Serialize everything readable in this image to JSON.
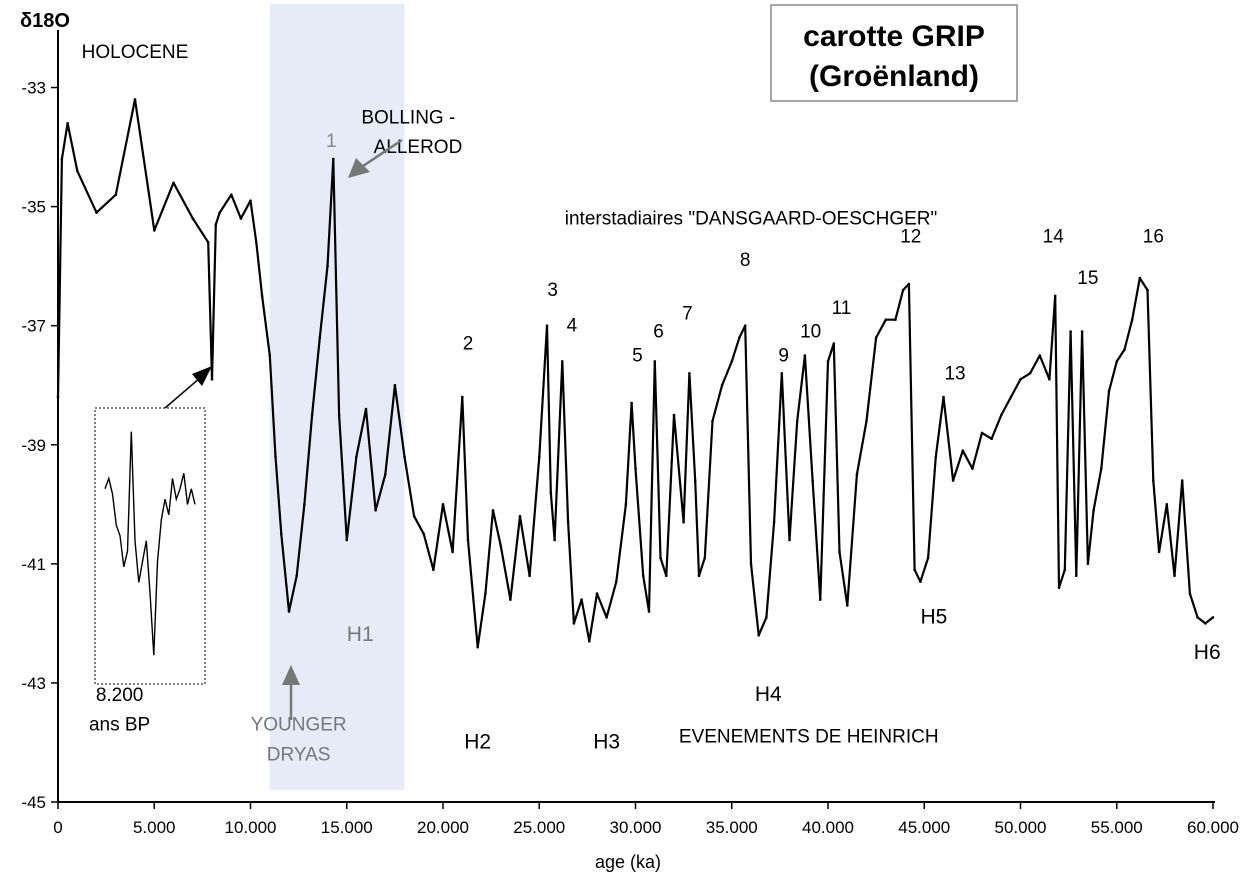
{
  "chart_data": {
    "type": "line",
    "title": "carotte GRIP",
    "subtitle": "(Groënland)",
    "ylabel": "δ18O",
    "xlabel": "age (ka)",
    "xlim": [
      0,
      60000
    ],
    "ylim": [
      -45,
      -32
    ],
    "x_ticks": [
      0,
      5000,
      10000,
      15000,
      20000,
      25000,
      30000,
      35000,
      40000,
      45000,
      50000,
      55000,
      60000
    ],
    "x_tick_labels": [
      "0",
      "5.000",
      "10.000",
      "15.000",
      "20.000",
      "25.000",
      "30.000",
      "35.000",
      "40.000",
      "45.000",
      "50.000",
      "55.000",
      "60.000"
    ],
    "y_ticks": [
      -33,
      -35,
      -37,
      -39,
      -41,
      -43,
      -45
    ],
    "y_tick_labels": [
      "-33",
      "-35",
      "-37",
      "-39",
      "-41",
      "-43",
      "-45"
    ],
    "grid": false,
    "highlight_band": {
      "x": [
        11000,
        18000
      ],
      "color": "#e6ebf7"
    },
    "series": [
      {
        "color": "#000000",
        "x": [
          0,
          200,
          500,
          1000,
          2000,
          3000,
          4000,
          5000,
          6000,
          7000,
          7800,
          8000,
          8200,
          8400,
          9000,
          9500,
          10000,
          10300,
          10600,
          11000,
          11300,
          11600,
          12000,
          12400,
          12800,
          13200,
          13600,
          14000,
          14300,
          14600,
          15000,
          15500,
          16000,
          16500,
          17000,
          17500,
          18000,
          18500,
          19000,
          19500,
          20000,
          20500,
          21000,
          21300,
          21800,
          22200,
          22600,
          23000,
          23500,
          24000,
          24500,
          25000,
          25400,
          25600,
          25800,
          26200,
          26500,
          26800,
          27200,
          27600,
          28000,
          28500,
          29000,
          29500,
          29800,
          30000,
          30400,
          30700,
          31000,
          31300,
          31600,
          32000,
          32500,
          32800,
          33100,
          33300,
          33600,
          34000,
          34500,
          35000,
          35400,
          35700,
          36000,
          36400,
          36800,
          37200,
          37600,
          38000,
          38400,
          38800,
          39200,
          39600,
          40000,
          40300,
          40600,
          41000,
          41500,
          42000,
          42500,
          43000,
          43500,
          43900,
          44200,
          44500,
          44800,
          45200,
          45600,
          46000,
          46500,
          47000,
          47500,
          48000,
          48500,
          49000,
          49500,
          50000,
          50500,
          51000,
          51500,
          51800,
          52000,
          52300,
          52600,
          52900,
          53200,
          53500,
          53800,
          54200,
          54600,
          55000,
          55400,
          55800,
          56200,
          56600,
          56900,
          57200,
          57600,
          58000,
          58400,
          58800,
          59200,
          59600,
          60000
        ],
        "y": [
          -38.2,
          -34.2,
          -33.6,
          -34.4,
          -35.1,
          -34.8,
          -33.2,
          -35.4,
          -34.6,
          -35.2,
          -35.6,
          -37.9,
          -35.3,
          -35.1,
          -34.8,
          -35.2,
          -34.9,
          -35.6,
          -36.5,
          -37.5,
          -39.2,
          -40.5,
          -41.8,
          -41.2,
          -40.0,
          -38.5,
          -37.2,
          -36.0,
          -34.2,
          -38.5,
          -40.6,
          -39.2,
          -38.4,
          -40.1,
          -39.5,
          -38.0,
          -39.2,
          -40.2,
          -40.5,
          -41.1,
          -40.0,
          -40.8,
          -38.2,
          -40.6,
          -42.4,
          -41.5,
          -40.1,
          -40.7,
          -41.6,
          -40.2,
          -41.2,
          -39.2,
          -37.0,
          -39.8,
          -40.6,
          -37.6,
          -40.3,
          -42.0,
          -41.6,
          -42.3,
          -41.5,
          -41.9,
          -41.3,
          -40.0,
          -38.3,
          -39.4,
          -41.2,
          -41.8,
          -37.6,
          -40.9,
          -41.2,
          -38.5,
          -40.3,
          -37.8,
          -39.6,
          -41.2,
          -40.9,
          -38.6,
          -38.0,
          -37.6,
          -37.2,
          -37.0,
          -41.0,
          -42.2,
          -41.9,
          -40.3,
          -37.8,
          -40.6,
          -38.6,
          -37.5,
          -39.6,
          -41.6,
          -37.6,
          -37.3,
          -40.8,
          -41.7,
          -39.5,
          -38.6,
          -37.2,
          -36.9,
          -36.9,
          -36.4,
          -36.3,
          -41.1,
          -41.3,
          -40.9,
          -39.2,
          -38.2,
          -39.6,
          -39.1,
          -39.4,
          -38.8,
          -38.9,
          -38.5,
          -38.2,
          -37.9,
          -37.8,
          -37.5,
          -37.9,
          -36.5,
          -41.4,
          -41.1,
          -37.1,
          -41.2,
          -37.1,
          -41.0,
          -40.1,
          -39.4,
          -38.1,
          -37.6,
          -37.4,
          -36.9,
          -36.2,
          -36.4,
          -39.6,
          -40.8,
          -40.0,
          -41.2,
          -39.6,
          -41.5,
          -41.9,
          -42.0,
          -41.9
        ]
      }
    ],
    "annotations": [
      {
        "text": "HOLOCENE",
        "x": 4000,
        "y": -32.5
      },
      {
        "text": "BOLLING -",
        "x": 18200,
        "y": -33.6
      },
      {
        "text": "ALLEROD",
        "x": 18700,
        "y": -34.1
      },
      {
        "text": "interstadiaires \"DANSGAARD-OESCHGER\"",
        "x": 36000,
        "y": -35.3
      },
      {
        "text": "YOUNGER",
        "x": 12500,
        "y": -43.8
      },
      {
        "text": "DRYAS",
        "x": 12500,
        "y": -44.3
      },
      {
        "text": "EVENEMENTS DE HEINRICH",
        "x": 39000,
        "y": -44.0
      },
      {
        "text": "8.200",
        "x": 3200,
        "y": -43.3
      },
      {
        "text": "ans BP",
        "x": 3200,
        "y": -43.8
      }
    ],
    "interstadials": [
      {
        "label": "1",
        "x": 14200,
        "y": -34.0
      },
      {
        "label": "2",
        "x": 21300,
        "y": -37.4
      },
      {
        "label": "3",
        "x": 25700,
        "y": -36.5
      },
      {
        "label": "4",
        "x": 26700,
        "y": -37.1
      },
      {
        "label": "5",
        "x": 30100,
        "y": -37.6
      },
      {
        "label": "6",
        "x": 31200,
        "y": -37.2
      },
      {
        "label": "7",
        "x": 32700,
        "y": -36.9
      },
      {
        "label": "8",
        "x": 35700,
        "y": -36.0
      },
      {
        "label": "9",
        "x": 37700,
        "y": -37.6
      },
      {
        "label": "10",
        "x": 39100,
        "y": -37.2
      },
      {
        "label": "11",
        "x": 40700,
        "y": -36.8
      },
      {
        "label": "12",
        "x": 44300,
        "y": -35.6
      },
      {
        "label": "13",
        "x": 46600,
        "y": -37.9
      },
      {
        "label": "14",
        "x": 51700,
        "y": -35.6
      },
      {
        "label": "15",
        "x": 53500,
        "y": -36.3
      },
      {
        "label": "16",
        "x": 56900,
        "y": -35.6
      }
    ],
    "heinrich": [
      {
        "label": "H1",
        "x": 15700,
        "y": -42.3
      },
      {
        "label": "H2",
        "x": 21800,
        "y": -44.1
      },
      {
        "label": "H3",
        "x": 28500,
        "y": -44.1
      },
      {
        "label": "H4",
        "x": 36900,
        "y": -43.3
      },
      {
        "label": "H5",
        "x": 45500,
        "y": -42.0
      },
      {
        "label": "H6",
        "x": 59700,
        "y": -42.6
      }
    ],
    "inset": {
      "label": "8.200 ans BP",
      "y": [
        -39.6,
        -39.4,
        -39.7,
        -40.3,
        -40.5,
        -41.1,
        -40.8,
        -38.5,
        -40.6,
        -41.4,
        -41.0,
        -40.6,
        -41.6,
        -42.8,
        -41.0,
        -40.2,
        -39.8,
        -40.1,
        -39.4,
        -39.8,
        -39.6,
        -39.3,
        -39.9,
        -39.6,
        -39.9
      ]
    }
  }
}
